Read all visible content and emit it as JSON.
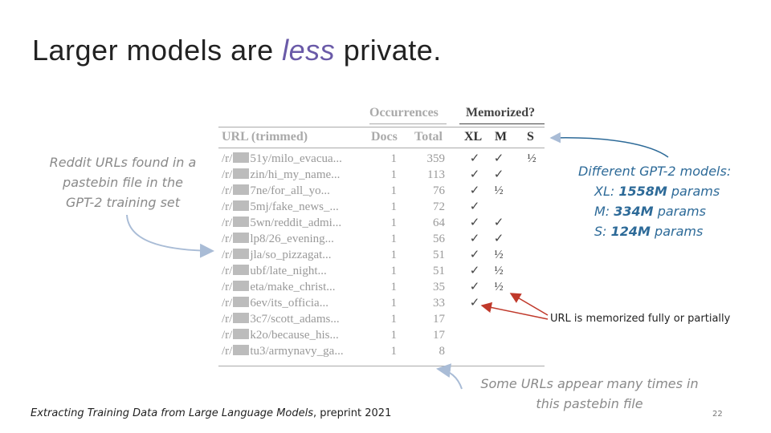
{
  "slide": {
    "title_before": "Larger models are ",
    "title_emph": "less",
    "title_after": " private.",
    "slide_number": "22"
  },
  "table": {
    "group_headers": {
      "occurrences": "Occurrences",
      "memorized": "Memorized?"
    },
    "columns": {
      "url": "URL (trimmed)",
      "docs": "Docs",
      "total": "Total",
      "xl": "XL",
      "m": "M",
      "s": "S"
    },
    "url_prefix": "/r/",
    "rows": [
      {
        "url": "51y/milo_evacua...",
        "docs": "1",
        "total": "359",
        "xl": "✓",
        "m": "✓",
        "s": "½"
      },
      {
        "url": "zin/hi_my_name...",
        "docs": "1",
        "total": "113",
        "xl": "✓",
        "m": "✓",
        "s": ""
      },
      {
        "url": "7ne/for_all_yo...",
        "docs": "1",
        "total": "76",
        "xl": "✓",
        "m": "½",
        "s": ""
      },
      {
        "url": "5mj/fake_news_...",
        "docs": "1",
        "total": "72",
        "xl": "✓",
        "m": "",
        "s": ""
      },
      {
        "url": "5wn/reddit_admi...",
        "docs": "1",
        "total": "64",
        "xl": "✓",
        "m": "✓",
        "s": ""
      },
      {
        "url": "lp8/26_evening...",
        "docs": "1",
        "total": "56",
        "xl": "✓",
        "m": "✓",
        "s": ""
      },
      {
        "url": "jla/so_pizzagat...",
        "docs": "1",
        "total": "51",
        "xl": "✓",
        "m": "½",
        "s": ""
      },
      {
        "url": "ubf/late_night...",
        "docs": "1",
        "total": "51",
        "xl": "✓",
        "m": "½",
        "s": ""
      },
      {
        "url": "eta/make_christ...",
        "docs": "1",
        "total": "35",
        "xl": "✓",
        "m": "½",
        "s": ""
      },
      {
        "url": "6ev/its_officia...",
        "docs": "1",
        "total": "33",
        "xl": "✓",
        "m": "",
        "s": ""
      },
      {
        "url": "3c7/scott_adams...",
        "docs": "1",
        "total": "17",
        "xl": "",
        "m": "",
        "s": ""
      },
      {
        "url": "k2o/because_his...",
        "docs": "1",
        "total": "17",
        "xl": "",
        "m": "",
        "s": ""
      },
      {
        "url": "tu3/armynavy_ga...",
        "docs": "1",
        "total": "8",
        "xl": "",
        "m": "",
        "s": ""
      }
    ]
  },
  "annotations": {
    "reddit": "Reddit URLs found in a pastebin file in the GPT-2 training set",
    "gpt_heading": "Different GPT-2 models:",
    "gpt_xl_prefix": "XL: ",
    "gpt_xl_value": "1558M",
    "gpt_xl_suffix": " params",
    "gpt_m_prefix": "M: ",
    "gpt_m_value": "334M",
    "gpt_m_suffix": " params",
    "gpt_s_prefix": "S: ",
    "gpt_s_value": "124M",
    "gpt_s_suffix": " params",
    "memorized": "URL is memorized fully or partially",
    "some_urls": "Some URLs appear many times in this pastebin file"
  },
  "citation": {
    "title": "Extracting Training Data from Large Language Models",
    "rest": ", preprint 2021"
  },
  "colors": {
    "title_emphasis": "#6a5aa8",
    "gpt_annotation": "#2d6a98",
    "memorized_arrow": "#c0392b",
    "gray_arrow": "#a9bcd6"
  }
}
